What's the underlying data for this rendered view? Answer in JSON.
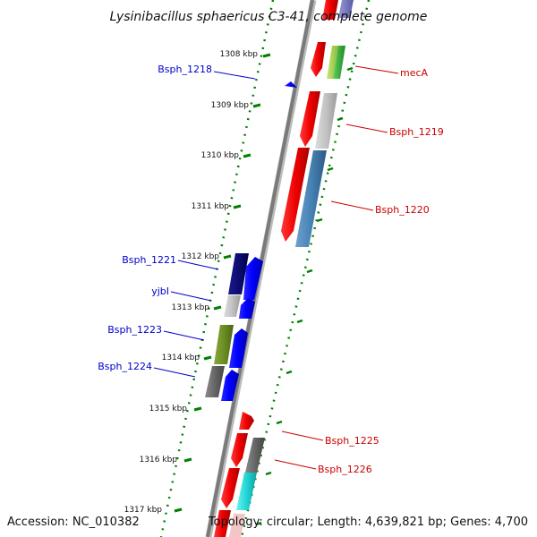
{
  "title": "Lysinibacillus sphaericus C3-41, complete genome",
  "footer": {
    "accession": "Accession: NC_010382",
    "topology": "Topology: circular; Length: 4,639,821 bp; Genes: 4,700"
  },
  "colors": {
    "minus_label": "#0000cc",
    "plus_label": "#cc0000"
  },
  "ticks": [
    "1308 kbp",
    "1309 kbp",
    "1310 kbp",
    "1311 kbp",
    "1312 kbp",
    "1313 kbp",
    "1314 kbp",
    "1315 kbp",
    "1316 kbp",
    "1317 kbp"
  ],
  "gene_labels": {
    "minus": [
      "Bsph_1218",
      "Bsph_1221",
      "yjbI",
      "Bsph_1223",
      "Bsph_1224"
    ],
    "plus": [
      "mecA",
      "Bsph_1219",
      "Bsph_1220",
      "Bsph_1225",
      "Bsph_1226"
    ]
  }
}
